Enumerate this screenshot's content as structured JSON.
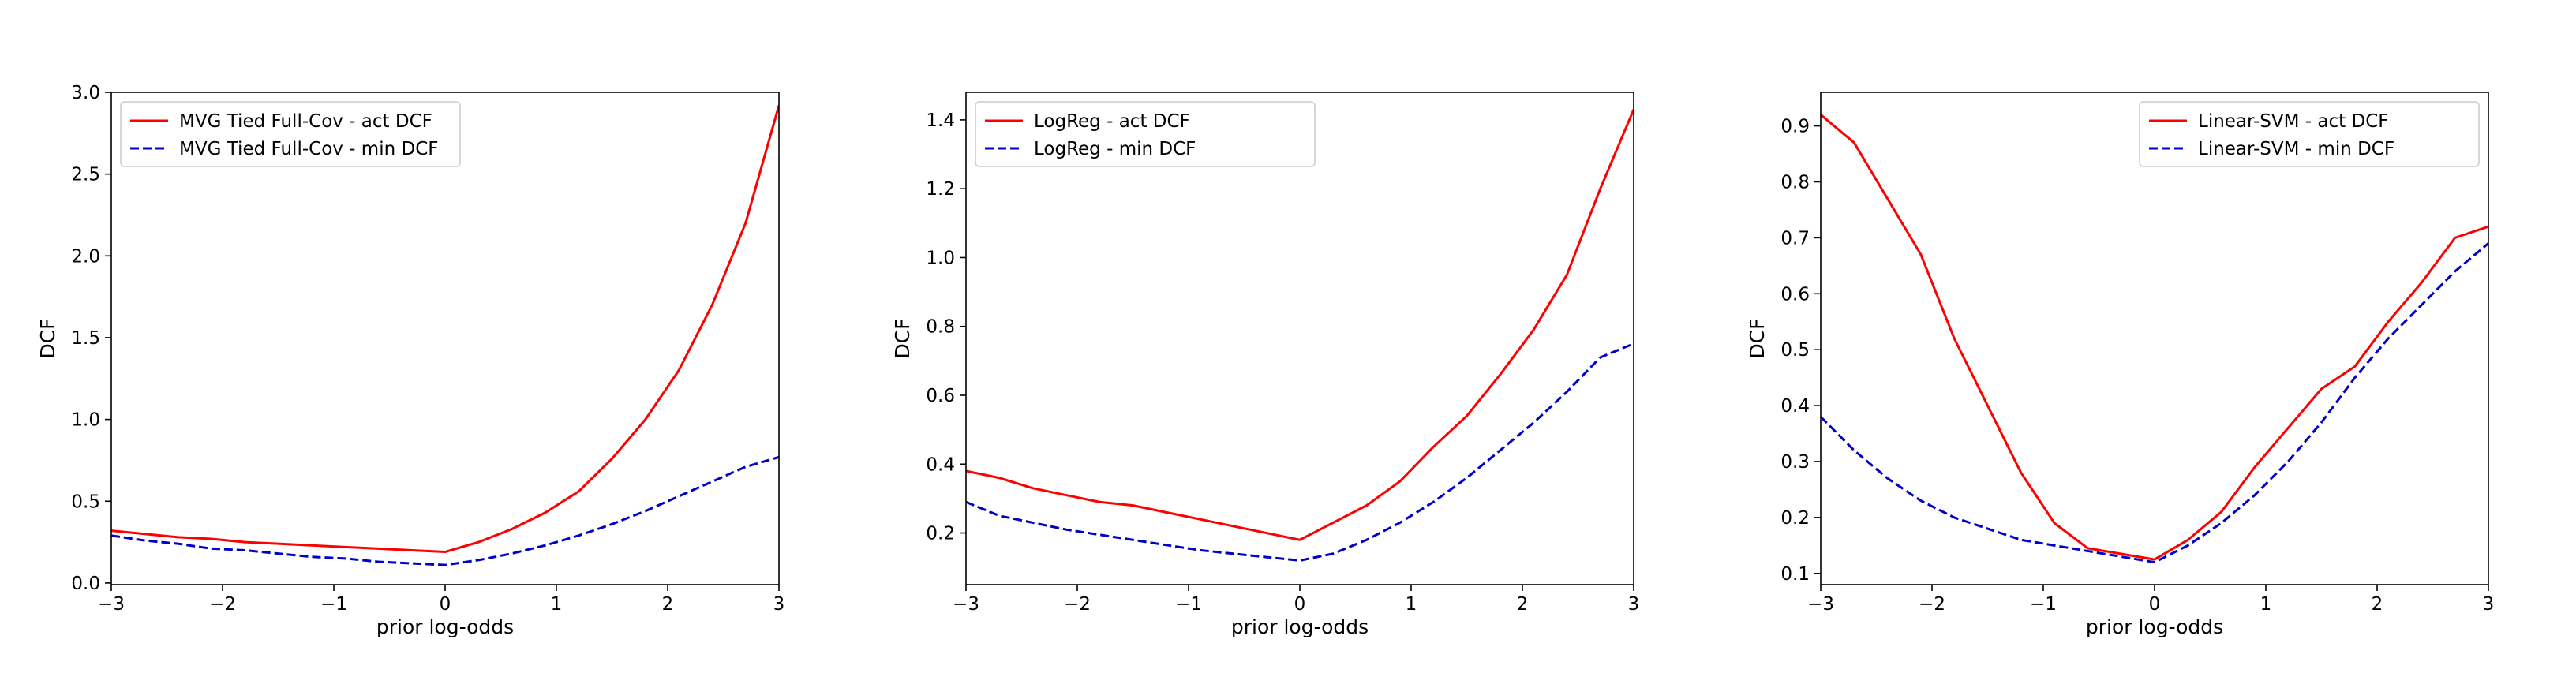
{
  "chart_data": [
    {
      "type": "line",
      "xlabel": "prior log-odds",
      "ylabel": "DCF",
      "xlim": [
        -3,
        3
      ],
      "ylim": [
        -0.01,
        3.0
      ],
      "xticks": [
        "−3",
        "−2",
        "−1",
        "0",
        "1",
        "2",
        "3"
      ],
      "xtick_values": [
        -3,
        -2,
        -1,
        0,
        1,
        2,
        3
      ],
      "yticks": [
        "0.0",
        "0.5",
        "1.0",
        "1.5",
        "2.0",
        "2.5",
        "3.0"
      ],
      "ytick_values": [
        0,
        0.5,
        1.0,
        1.5,
        2.0,
        2.5,
        3.0
      ],
      "grid": false,
      "legend_position": "upper-left",
      "series": [
        {
          "name": "MVG Tied Full-Cov - act DCF",
          "color": "#ff0000",
          "dash": "solid",
          "x": [
            -3,
            -2.7,
            -2.4,
            -2.1,
            -1.8,
            -1.5,
            -1.2,
            -0.9,
            -0.6,
            -0.3,
            0,
            0.3,
            0.6,
            0.9,
            1.2,
            1.5,
            1.8,
            2.1,
            2.4,
            2.7,
            3
          ],
          "y": [
            0.32,
            0.3,
            0.28,
            0.27,
            0.25,
            0.24,
            0.23,
            0.22,
            0.21,
            0.2,
            0.19,
            0.25,
            0.33,
            0.43,
            0.56,
            0.76,
            1.0,
            1.3,
            1.7,
            2.2,
            2.92
          ]
        },
        {
          "name": "MVG Tied Full-Cov - min DCF",
          "color": "#0000cc",
          "dash": "dashed",
          "x": [
            -3,
            -2.7,
            -2.4,
            -2.1,
            -1.8,
            -1.5,
            -1.2,
            -0.9,
            -0.6,
            -0.3,
            0,
            0.3,
            0.6,
            0.9,
            1.2,
            1.5,
            1.8,
            2.1,
            2.4,
            2.7,
            3
          ],
          "y": [
            0.29,
            0.26,
            0.24,
            0.21,
            0.2,
            0.18,
            0.16,
            0.15,
            0.13,
            0.12,
            0.11,
            0.14,
            0.18,
            0.23,
            0.29,
            0.36,
            0.44,
            0.53,
            0.62,
            0.71,
            0.77
          ]
        }
      ]
    },
    {
      "type": "line",
      "xlabel": "prior log-odds",
      "ylabel": "DCF",
      "xlim": [
        -3,
        3
      ],
      "ylim": [
        0.05,
        1.48
      ],
      "xticks": [
        "−3",
        "−2",
        "−1",
        "0",
        "1",
        "2",
        "3"
      ],
      "xtick_values": [
        -3,
        -2,
        -1,
        0,
        1,
        2,
        3
      ],
      "yticks": [
        "0.2",
        "0.4",
        "0.6",
        "0.8",
        "1.0",
        "1.2",
        "1.4"
      ],
      "ytick_values": [
        0.2,
        0.4,
        0.6,
        0.8,
        1.0,
        1.2,
        1.4
      ],
      "grid": false,
      "legend_position": "upper-left",
      "series": [
        {
          "name": "LogReg - act DCF",
          "color": "#ff0000",
          "dash": "solid",
          "x": [
            -3,
            -2.7,
            -2.4,
            -2.1,
            -1.8,
            -1.5,
            -1.2,
            -0.9,
            -0.6,
            -0.3,
            0,
            0.3,
            0.6,
            0.9,
            1.2,
            1.5,
            1.8,
            2.1,
            2.4,
            2.7,
            3
          ],
          "y": [
            0.38,
            0.36,
            0.33,
            0.31,
            0.29,
            0.28,
            0.26,
            0.24,
            0.22,
            0.2,
            0.18,
            0.23,
            0.28,
            0.35,
            0.45,
            0.54,
            0.66,
            0.79,
            0.95,
            1.2,
            1.43
          ]
        },
        {
          "name": "LogReg - min DCF",
          "color": "#0000cc",
          "dash": "dashed",
          "x": [
            -3,
            -2.7,
            -2.4,
            -2.1,
            -1.8,
            -1.5,
            -1.2,
            -0.9,
            -0.6,
            -0.3,
            0,
            0.3,
            0.6,
            0.9,
            1.2,
            1.5,
            1.8,
            2.1,
            2.4,
            2.7,
            3
          ],
          "y": [
            0.29,
            0.25,
            0.23,
            0.21,
            0.195,
            0.18,
            0.165,
            0.15,
            0.14,
            0.13,
            0.12,
            0.14,
            0.18,
            0.23,
            0.29,
            0.36,
            0.44,
            0.52,
            0.61,
            0.71,
            0.75
          ]
        }
      ]
    },
    {
      "type": "line",
      "xlabel": "prior log-odds",
      "ylabel": "DCF",
      "xlim": [
        -3,
        3
      ],
      "ylim": [
        0.08,
        0.96
      ],
      "xticks": [
        "−3",
        "−2",
        "−1",
        "0",
        "1",
        "2",
        "3"
      ],
      "xtick_values": [
        -3,
        -2,
        -1,
        0,
        1,
        2,
        3
      ],
      "yticks": [
        "0.1",
        "0.2",
        "0.3",
        "0.4",
        "0.5",
        "0.6",
        "0.7",
        "0.8",
        "0.9"
      ],
      "ytick_values": [
        0.1,
        0.2,
        0.3,
        0.4,
        0.5,
        0.6,
        0.7,
        0.8,
        0.9
      ],
      "grid": false,
      "legend_position": "upper-right",
      "series": [
        {
          "name": "Linear-SVM - act DCF",
          "color": "#ff0000",
          "dash": "solid",
          "x": [
            -3,
            -2.7,
            -2.4,
            -2.1,
            -1.8,
            -1.5,
            -1.2,
            -0.9,
            -0.6,
            -0.3,
            0,
            0.3,
            0.6,
            0.9,
            1.2,
            1.5,
            1.8,
            2.1,
            2.4,
            2.7,
            3
          ],
          "y": [
            0.92,
            0.87,
            0.77,
            0.67,
            0.52,
            0.4,
            0.28,
            0.19,
            0.145,
            0.135,
            0.125,
            0.16,
            0.21,
            0.29,
            0.36,
            0.43,
            0.47,
            0.55,
            0.62,
            0.7,
            0.72
          ]
        },
        {
          "name": "Linear-SVM - min DCF",
          "color": "#0000cc",
          "dash": "dashed",
          "x": [
            -3,
            -2.7,
            -2.4,
            -2.1,
            -1.8,
            -1.5,
            -1.2,
            -0.9,
            -0.6,
            -0.3,
            0,
            0.3,
            0.6,
            0.9,
            1.2,
            1.5,
            1.8,
            2.1,
            2.4,
            2.7,
            3
          ],
          "y": [
            0.38,
            0.32,
            0.27,
            0.23,
            0.2,
            0.18,
            0.16,
            0.15,
            0.14,
            0.13,
            0.12,
            0.15,
            0.19,
            0.24,
            0.3,
            0.37,
            0.45,
            0.52,
            0.58,
            0.64,
            0.69
          ]
        }
      ]
    }
  ]
}
